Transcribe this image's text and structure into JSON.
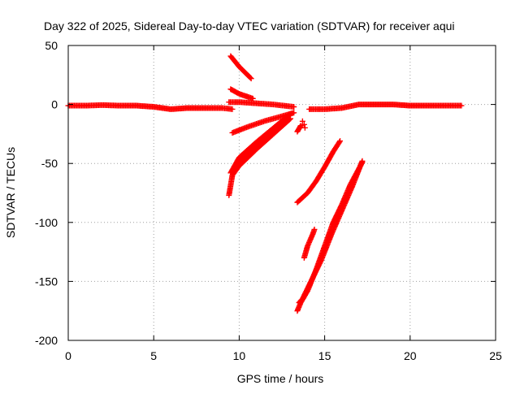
{
  "chart_data": {
    "type": "scatter",
    "title": "Day 322 of 2025, Sidereal Day-to-day VTEC variation (SDTVAR) for receiver aqui",
    "xlabel": "GPS time / hours",
    "ylabel": "SDTVAR / TECUs",
    "xlim": [
      0,
      25
    ],
    "ylim": [
      -200,
      50
    ],
    "xticks": [
      "0",
      "5",
      "10",
      "15",
      "20",
      "25"
    ],
    "yticks": [
      "50",
      "0",
      "-50",
      "-100",
      "-150",
      "-200"
    ],
    "grid": true,
    "marker": "plus",
    "colors": {
      "series": "#ff0000",
      "grid": "#a0a0a0",
      "axes": "#000000"
    },
    "series": [
      {
        "x": [
          0.0,
          1.0,
          2.0,
          3.0,
          4.0,
          5.0,
          6.0,
          7.0,
          8.0,
          9.0,
          9.6
        ],
        "y": [
          -1,
          -1,
          -0.5,
          -1,
          -1,
          -2,
          -4,
          -3,
          -3,
          -3,
          -4
        ]
      },
      {
        "x": [
          9.5,
          10.0,
          10.7
        ],
        "y": [
          41,
          32,
          22
        ]
      },
      {
        "x": [
          9.5,
          10.0,
          10.8
        ],
        "y": [
          13,
          9,
          5
        ]
      },
      {
        "x": [
          9.4,
          10.0,
          11.0,
          12.0,
          13.2
        ],
        "y": [
          2,
          2,
          1,
          0,
          -2
        ]
      },
      {
        "x": [
          9.6,
          10.5,
          11.5,
          12.5,
          13.2
        ],
        "y": [
          -24,
          -19,
          -14,
          -10,
          -7
        ]
      },
      {
        "x": [
          9.5,
          10.0,
          11.0,
          12.0,
          13.0
        ],
        "y": [
          -58,
          -45,
          -32,
          -20,
          -8
        ]
      },
      {
        "x": [
          9.6,
          10.0,
          11.0,
          12.0,
          13.0
        ],
        "y": [
          -60,
          -52,
          -38,
          -25,
          -12
        ]
      },
      {
        "x": [
          9.4,
          9.6,
          10.0,
          10.8,
          11.8,
          12.8
        ],
        "y": [
          -77,
          -60,
          -48,
          -36,
          -25,
          -13
        ]
      },
      {
        "x": [
          13.4,
          13.6
        ],
        "y": [
          -23,
          -18
        ]
      },
      {
        "x": [
          13.8
        ],
        "y": [
          -17
        ]
      },
      {
        "x": [
          14.1,
          15.0,
          16.0,
          17.0,
          18.0,
          19.0,
          20.0,
          21.0,
          22.0,
          23.0
        ],
        "y": [
          -4,
          -4,
          -3,
          0,
          0,
          0,
          -1,
          -1,
          -1,
          -1
        ]
      },
      {
        "x": [
          13.4,
          14.0,
          14.5,
          15.0,
          15.5,
          15.9
        ],
        "y": [
          -83,
          -75,
          -65,
          -53,
          -40,
          -31
        ]
      },
      {
        "x": [
          13.8,
          14.0,
          14.3,
          14.4
        ],
        "y": [
          -130,
          -120,
          -110,
          -106
        ]
      },
      {
        "x": [
          13.4,
          13.6,
          14.0,
          14.5,
          15.0,
          15.5,
          16.0,
          16.5,
          17.2
        ],
        "y": [
          -175,
          -168,
          -158,
          -140,
          -120,
          -100,
          -85,
          -68,
          -49
        ]
      },
      {
        "x": [
          13.5,
          13.7,
          14.2,
          14.8,
          15.4,
          16.0,
          16.6,
          17.2
        ],
        "y": [
          -168,
          -165,
          -150,
          -132,
          -110,
          -90,
          -70,
          -48
        ]
      }
    ]
  }
}
